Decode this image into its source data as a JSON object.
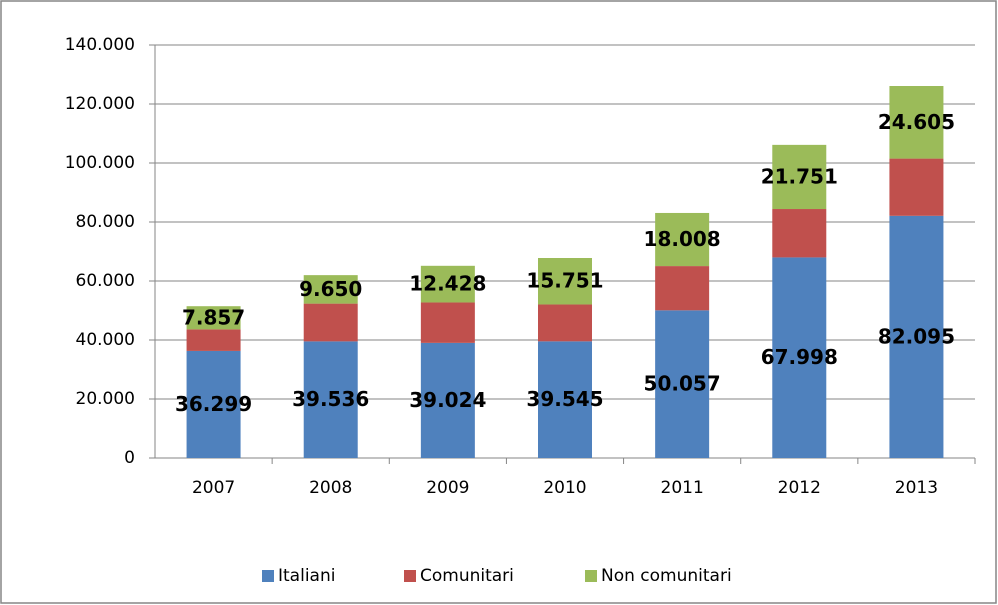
{
  "chart_data": {
    "type": "stacked-bar",
    "categories": [
      "2007",
      "2008",
      "2009",
      "2010",
      "2011",
      "2012",
      "2013"
    ],
    "series": [
      {
        "name": "Italiani",
        "color": "#4f81bd",
        "values": [
          36299,
          39536,
          39024,
          39545,
          50057,
          67998,
          82095
        ],
        "value_labels": [
          "36.299",
          "39.536",
          "39.024",
          "39.545",
          "50.057",
          "67.998",
          "82.095"
        ]
      },
      {
        "name": "Comunitari",
        "color": "#c0504d",
        "values": [
          7300,
          12800,
          13700,
          12500,
          15000,
          16400,
          19400
        ]
      },
      {
        "name": "Non comunitari",
        "color": "#9bbb59",
        "values": [
          7857,
          9650,
          12428,
          15751,
          18008,
          21751,
          24605
        ],
        "value_labels": [
          "7.857",
          "9.650",
          "12.428",
          "15.751",
          "18.008",
          "21.751",
          "24.605"
        ]
      }
    ],
    "ylim": [
      0,
      140000
    ],
    "yticks": [
      0,
      {
        "value": 20000,
        "label": "20.000"
      },
      {
        "value": 40000,
        "label": "40.000"
      },
      {
        "value": 60000,
        "label": "60.000"
      },
      {
        "value": 80000,
        "label": "80.000"
      },
      {
        "value": 100000,
        "label": "100.000"
      },
      {
        "value": 120000,
        "label": "120.000"
      },
      {
        "value": 140000,
        "label": "140.000"
      }
    ],
    "grid": true,
    "legend": "bottom"
  }
}
